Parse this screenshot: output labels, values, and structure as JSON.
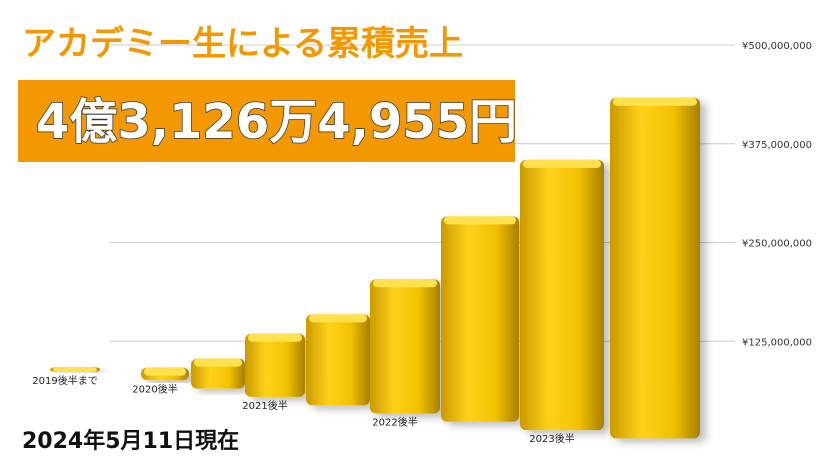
{
  "chart_data": {
    "type": "bar3d",
    "title": "アカデミー生による累積売上",
    "subtitle": "4億3,126万4,955円",
    "annotation": "2024年5月11日現在",
    "categories": [
      "2019後半まで",
      "2020後半",
      null,
      "2021後半",
      null,
      "2022後半",
      null,
      "2023後半",
      null
    ],
    "values": [
      6000000,
      16000000,
      38000000,
      80000000,
      115000000,
      170000000,
      260000000,
      342000000,
      431264955
    ],
    "color": "#f2c200",
    "ylim": [
      0,
      500000000
    ],
    "yticks": [
      {
        "value": 125000000,
        "label": "¥125,000,000"
      },
      {
        "value": 250000000,
        "label": "¥250,000,000"
      },
      {
        "value": 375000000,
        "label": "¥375,000,000"
      },
      {
        "value": 500000000,
        "label": "¥500,000,000"
      }
    ],
    "grid": true
  }
}
